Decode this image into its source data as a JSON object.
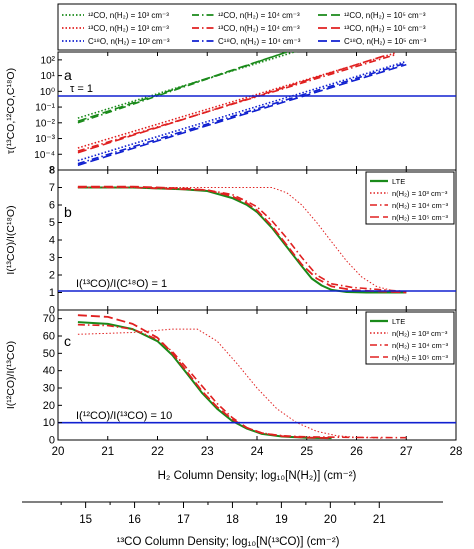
{
  "chart_data": {
    "type": "line",
    "colors": {
      "blue": "#1020d0",
      "red": "#e02020",
      "green": "#1a8a1a"
    },
    "legend_top": {
      "placement": "top",
      "entries": [
        {
          "label": "¹²CO, n(H₂) = 10³ cm⁻³",
          "color": "green",
          "dash": "1.5,2"
        },
        {
          "label": "¹³CO, n(H₂) = 10³ cm⁻³",
          "color": "red",
          "dash": "1.5,2"
        },
        {
          "label": "C¹⁸O, n(H₂) = 10³ cm⁻³",
          "color": "blue",
          "dash": "1.5,2"
        },
        {
          "label": "¹²CO, n(H₂) = 10⁴ cm⁻³",
          "color": "green",
          "dash": "7,3,1.5,3"
        },
        {
          "label": "¹³CO, n(H₂) = 10⁴ cm⁻³",
          "color": "red",
          "dash": "7,3,1.5,3"
        },
        {
          "label": "C¹⁸O, n(H₂) = 10⁴ cm⁻³",
          "color": "blue",
          "dash": "7,3,1.5,3"
        },
        {
          "label": "¹²CO, n(H₂) = 10⁵ cm⁻³",
          "color": "green",
          "dash": "9,4"
        },
        {
          "label": "¹³CO, n(H₂) = 10⁵ cm⁻³",
          "color": "red",
          "dash": "9,4"
        },
        {
          "label": "C¹⁸O, n(H₂) = 10⁵ cm⁻³",
          "color": "blue",
          "dash": "9,4"
        }
      ]
    },
    "legend_panels": [
      {
        "label": "LTE",
        "color": "green",
        "dash": ""
      },
      {
        "label": "n(H₂) = 10³ cm⁻³",
        "color": "red",
        "dash": "1.5,2"
      },
      {
        "label": "n(H₂) = 10⁴ cm⁻³",
        "color": "red",
        "dash": "7,3,1.5,3"
      },
      {
        "label": "n(H₂) = 10⁵ cm⁻³",
        "color": "red",
        "dash": "9,4"
      }
    ],
    "x_axis": {
      "label": "H₂ Column Density; log₁₀[N(H₂)]  (cm⁻²)",
      "range": [
        20,
        28
      ],
      "ticks": [
        20,
        21,
        22,
        23,
        24,
        25,
        26,
        27,
        28
      ]
    },
    "x2_axis": {
      "label": "¹³CO Column Density; log₁₀[N(¹³CO)]  (cm⁻²)",
      "range": [
        14,
        22
      ],
      "ticks": [
        15,
        16,
        17,
        18,
        19,
        20,
        21
      ]
    },
    "panels": [
      {
        "letter": "a",
        "ylabel": "τ(¹³CO,¹²CO,C¹⁸O)",
        "scale": "log",
        "ylim": [
          -5,
          2.5
        ],
        "ticks": [
          "10²",
          "10¹",
          "10⁰",
          "10⁻¹",
          "10⁻²",
          "10⁻³",
          "10⁻⁴",
          "8"
        ],
        "hline": {
          "y": 0,
          "label": "τ = 1"
        },
        "series": [
          {
            "color": "green",
            "dash": "1.5,2",
            "x": [
              20.4,
              24.8
            ],
            "y": [
              -1.7,
              2.55
            ]
          },
          {
            "color": "green",
            "dash": "7,3,1.5,3",
            "x": [
              20.4,
              24.6
            ],
            "y": [
              -2.0,
              2.5
            ]
          },
          {
            "color": "green",
            "dash": "9,4",
            "x": [
              20.4,
              24.6
            ],
            "y": [
              -1.9,
              2.5
            ]
          },
          {
            "color": "red",
            "dash": "1.5,2",
            "x": [
              20.4,
              26.8
            ],
            "y": [
              -3.6,
              2.45
            ]
          },
          {
            "color": "red",
            "dash": "7,3,1.5,3",
            "x": [
              20.4,
              26.8
            ],
            "y": [
              -3.8,
              2.35
            ]
          },
          {
            "color": "red",
            "dash": "9,4",
            "x": [
              20.4,
              26.6
            ],
            "y": [
              -3.9,
              2.3
            ]
          },
          {
            "color": "blue",
            "dash": "1.5,2",
            "x": [
              20.4,
              27.0
            ],
            "y": [
              -4.4,
              1.9
            ]
          },
          {
            "color": "blue",
            "dash": "7,3,1.5,3",
            "x": [
              20.4,
              27.0
            ],
            "y": [
              -4.6,
              1.8
            ]
          },
          {
            "color": "blue",
            "dash": "9,4",
            "x": [
              20.4,
              27.0
            ],
            "y": [
              -4.7,
              1.7
            ]
          }
        ]
      },
      {
        "letter": "b",
        "ylabel": "I(¹³CO)/I(C¹⁸O)",
        "scale": "linear",
        "ylim": [
          0,
          8
        ],
        "ticks": [
          "8",
          "7",
          "6",
          "5",
          "4",
          "3",
          "2",
          "1",
          "0"
        ],
        "hline": {
          "y": 1,
          "label": "I(¹³CO)/I(C¹⁸O) = 1"
        },
        "series": [
          {
            "color": "green",
            "dash": "",
            "width": 2,
            "x": [
              20.4,
              21.5,
              22.5,
              23.0,
              23.5,
              23.8,
              24.0,
              24.3,
              24.6,
              24.9,
              25.1,
              25.3,
              25.5,
              25.8,
              26.2,
              27.0
            ],
            "y": [
              7.0,
              7.0,
              6.9,
              6.8,
              6.4,
              6.0,
              5.6,
              4.7,
              3.6,
              2.5,
              1.8,
              1.4,
              1.15,
              1.03,
              1.0,
              1.0
            ]
          },
          {
            "color": "red",
            "dash": "1.5,2",
            "width": 1,
            "x": [
              20.4,
              22.0,
              23.5,
              24.3,
              24.6,
              24.9,
              25.2,
              25.5,
              25.8,
              26.1,
              26.4,
              26.8,
              27.0
            ],
            "y": [
              7.0,
              7.0,
              7.0,
              7.0,
              6.7,
              6.0,
              5.0,
              3.9,
              2.8,
              1.9,
              1.35,
              1.05,
              1.0
            ]
          },
          {
            "color": "red",
            "dash": "7,3,1.5,3",
            "width": 1.6,
            "x": [
              20.4,
              21.5,
              22.5,
              23.0,
              23.5,
              23.8,
              24.0,
              24.3,
              24.6,
              24.9,
              25.2,
              25.5,
              25.9,
              26.3,
              26.8,
              27.0
            ],
            "y": [
              7.0,
              7.0,
              6.9,
              6.85,
              6.6,
              6.2,
              5.9,
              5.1,
              4.1,
              3.0,
              2.0,
              1.5,
              1.3,
              1.2,
              1.1,
              1.05
            ]
          },
          {
            "color": "red",
            "dash": "9,4",
            "width": 1.8,
            "x": [
              20.4,
              21.5,
              22.5,
              23.0,
              23.5,
              23.8,
              24.0,
              24.3,
              24.6,
              24.9,
              25.2,
              25.5,
              25.9,
              26.3,
              26.8,
              27.0
            ],
            "y": [
              7.05,
              7.05,
              6.95,
              6.85,
              6.5,
              6.1,
              5.7,
              4.8,
              3.7,
              2.6,
              1.8,
              1.35,
              1.15,
              1.08,
              1.02,
              1.0
            ]
          }
        ]
      },
      {
        "letter": "c",
        "ylabel": "I(¹²CO)/I(¹³CO)",
        "scale": "linear",
        "ylim": [
          0,
          75
        ],
        "ticks": [
          "70",
          "60",
          "50",
          "40",
          "30",
          "20",
          "10",
          "0"
        ],
        "hline": {
          "y": 10,
          "label": "I(¹²CO)/I(¹³CO) = 10"
        },
        "series": [
          {
            "color": "green",
            "dash": "",
            "width": 2,
            "x": [
              20.4,
              21.0,
              21.5,
              22.0,
              22.3,
              22.6,
              22.9,
              23.2,
              23.5,
              23.8,
              24.1,
              24.5,
              25.0,
              25.5
            ],
            "y": [
              68.0,
              67.0,
              64.0,
              57.0,
              49.0,
              38.0,
              27.0,
              18.0,
              11.0,
              6.5,
              3.5,
              2.0,
              1.3,
              1.1
            ]
          },
          {
            "color": "red",
            "dash": "1.5,2",
            "width": 1,
            "x": [
              20.4,
              21.5,
              22.3,
              22.8,
              23.2,
              23.6,
              24.0,
              24.4,
              24.8,
              25.2,
              25.6,
              26.0,
              26.5
            ],
            "y": [
              61.0,
              62.0,
              64.0,
              64.0,
              57.0,
              44.0,
              30.0,
              18.0,
              10.0,
              5.0,
              2.5,
              1.5,
              1.1
            ]
          },
          {
            "color": "red",
            "dash": "7,3,1.5,3",
            "width": 1.6,
            "x": [
              20.4,
              21.0,
              21.5,
              22.0,
              22.3,
              22.6,
              22.9,
              23.2,
              23.5,
              23.8,
              24.1,
              24.5,
              25.0,
              26.0,
              27.0
            ],
            "y": [
              66.5,
              66.0,
              64.0,
              58.0,
              51.0,
              41.0,
              31.0,
              21.0,
              13.0,
              7.0,
              4.0,
              2.5,
              1.8,
              1.5,
              1.3
            ]
          },
          {
            "color": "red",
            "dash": "9,4",
            "width": 1.8,
            "x": [
              20.4,
              21.0,
              21.5,
              22.0,
              22.3,
              22.6,
              22.9,
              23.2,
              23.5,
              23.8,
              24.1,
              24.5,
              25.0,
              25.5
            ],
            "y": [
              72.0,
              71.0,
              67.0,
              59.0,
              50.0,
              39.0,
              28.0,
              19.0,
              12.0,
              7.0,
              4.0,
              2.2,
              1.4,
              1.1
            ]
          }
        ]
      }
    ]
  }
}
